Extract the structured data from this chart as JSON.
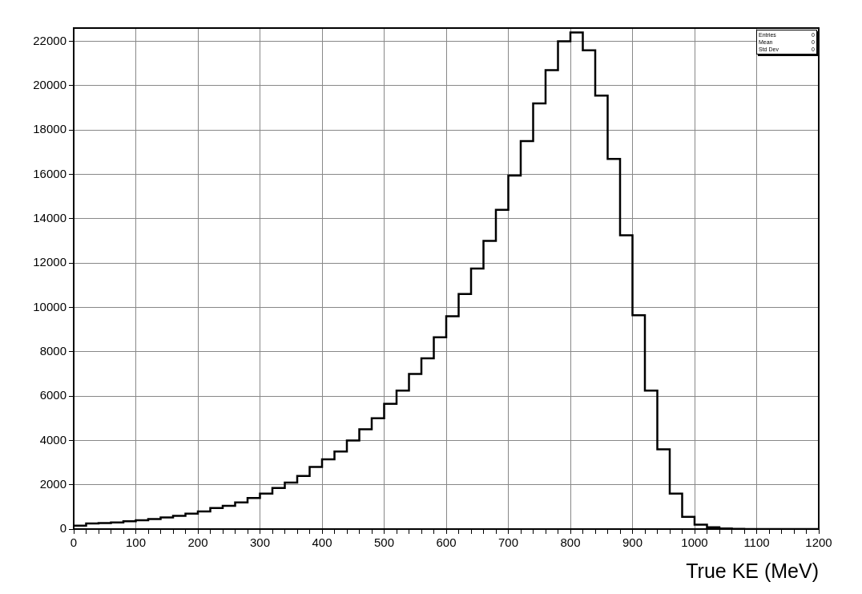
{
  "chart_data": {
    "type": "histogram",
    "xlabel": "True KE (MeV)",
    "bins": [
      0,
      20,
      40,
      60,
      80,
      100,
      120,
      140,
      160,
      180,
      200,
      220,
      240,
      260,
      280,
      300,
      320,
      340,
      360,
      380,
      400,
      420,
      440,
      460,
      480,
      500,
      520,
      540,
      560,
      580,
      600,
      620,
      640,
      660,
      680,
      700,
      720,
      740,
      760,
      780,
      800,
      820,
      840,
      860,
      880,
      900,
      920,
      940,
      960,
      980,
      1000,
      1020,
      1040,
      1060,
      1080,
      1100,
      1120,
      1140,
      1160,
      1180,
      1200
    ],
    "values": [
      150,
      250,
      270,
      300,
      350,
      400,
      450,
      520,
      600,
      700,
      800,
      950,
      1050,
      1200,
      1400,
      1600,
      1850,
      2100,
      2400,
      2800,
      3150,
      3500,
      4000,
      4500,
      5000,
      5650,
      6250,
      7000,
      7700,
      8650,
      9600,
      10600,
      11750,
      13000,
      14400,
      15950,
      17500,
      19200,
      20700,
      22000,
      22400,
      21600,
      19550,
      16700,
      13250,
      9650,
      6250,
      3600,
      1600,
      550,
      200,
      80,
      30,
      10,
      0,
      0,
      0,
      0,
      0,
      0
    ],
    "color": "#000000",
    "xlim": [
      0,
      1200
    ],
    "xticks": [
      0,
      {
        "value": 20,
        "label": null
      },
      {
        "value": 40,
        "label": null
      },
      {
        "value": 60,
        "label": null
      },
      {
        "value": 80,
        "label": null
      },
      100,
      {
        "value": 120,
        "label": null
      },
      {
        "value": 140,
        "label": null
      },
      {
        "value": 160,
        "label": null
      },
      {
        "value": 180,
        "label": null
      },
      200,
      {
        "value": 220,
        "label": null
      },
      {
        "value": 240,
        "label": null
      },
      {
        "value": 260,
        "label": null
      },
      {
        "value": 280,
        "label": null
      },
      300,
      {
        "value": 320,
        "label": null
      },
      {
        "value": 340,
        "label": null
      },
      {
        "value": 360,
        "label": null
      },
      {
        "value": 380,
        "label": null
      },
      400,
      {
        "value": 420,
        "label": null
      },
      {
        "value": 440,
        "label": null
      },
      {
        "value": 460,
        "label": null
      },
      {
        "value": 480,
        "label": null
      },
      500,
      {
        "value": 520,
        "label": null
      },
      {
        "value": 540,
        "label": null
      },
      {
        "value": 560,
        "label": null
      },
      {
        "value": 580,
        "label": null
      },
      600,
      {
        "value": 620,
        "label": null
      },
      {
        "value": 640,
        "label": null
      },
      {
        "value": 660,
        "label": null
      },
      {
        "value": 680,
        "label": null
      },
      700,
      {
        "value": 720,
        "label": null
      },
      {
        "value": 740,
        "label": null
      },
      {
        "value": 760,
        "label": null
      },
      {
        "value": 780,
        "label": null
      },
      800,
      {
        "value": 820,
        "label": null
      },
      {
        "value": 840,
        "label": null
      },
      {
        "value": 860,
        "label": null
      },
      {
        "value": 880,
        "label": null
      },
      900,
      {
        "value": 920,
        "label": null
      },
      {
        "value": 940,
        "label": null
      },
      {
        "value": 960,
        "label": null
      },
      {
        "value": 980,
        "label": null
      },
      1000,
      {
        "value": 1020,
        "label": null
      },
      {
        "value": 1040,
        "label": null
      },
      {
        "value": 1060,
        "label": null
      },
      {
        "value": 1080,
        "label": null
      },
      1100,
      {
        "value": 1120,
        "label": null
      },
      {
        "value": 1140,
        "label": null
      },
      {
        "value": 1160,
        "label": null
      },
      {
        "value": 1180,
        "label": null
      },
      1200
    ],
    "ylim": [
      0,
      22600
    ],
    "yticks": [
      0,
      2000,
      4000,
      6000,
      8000,
      10000,
      12000,
      14000,
      16000,
      18000,
      20000,
      22000
    ],
    "grid": true,
    "annotations": [
      "Entries",
      "0",
      "Mean",
      "0",
      "Std Dev",
      "0"
    ]
  }
}
